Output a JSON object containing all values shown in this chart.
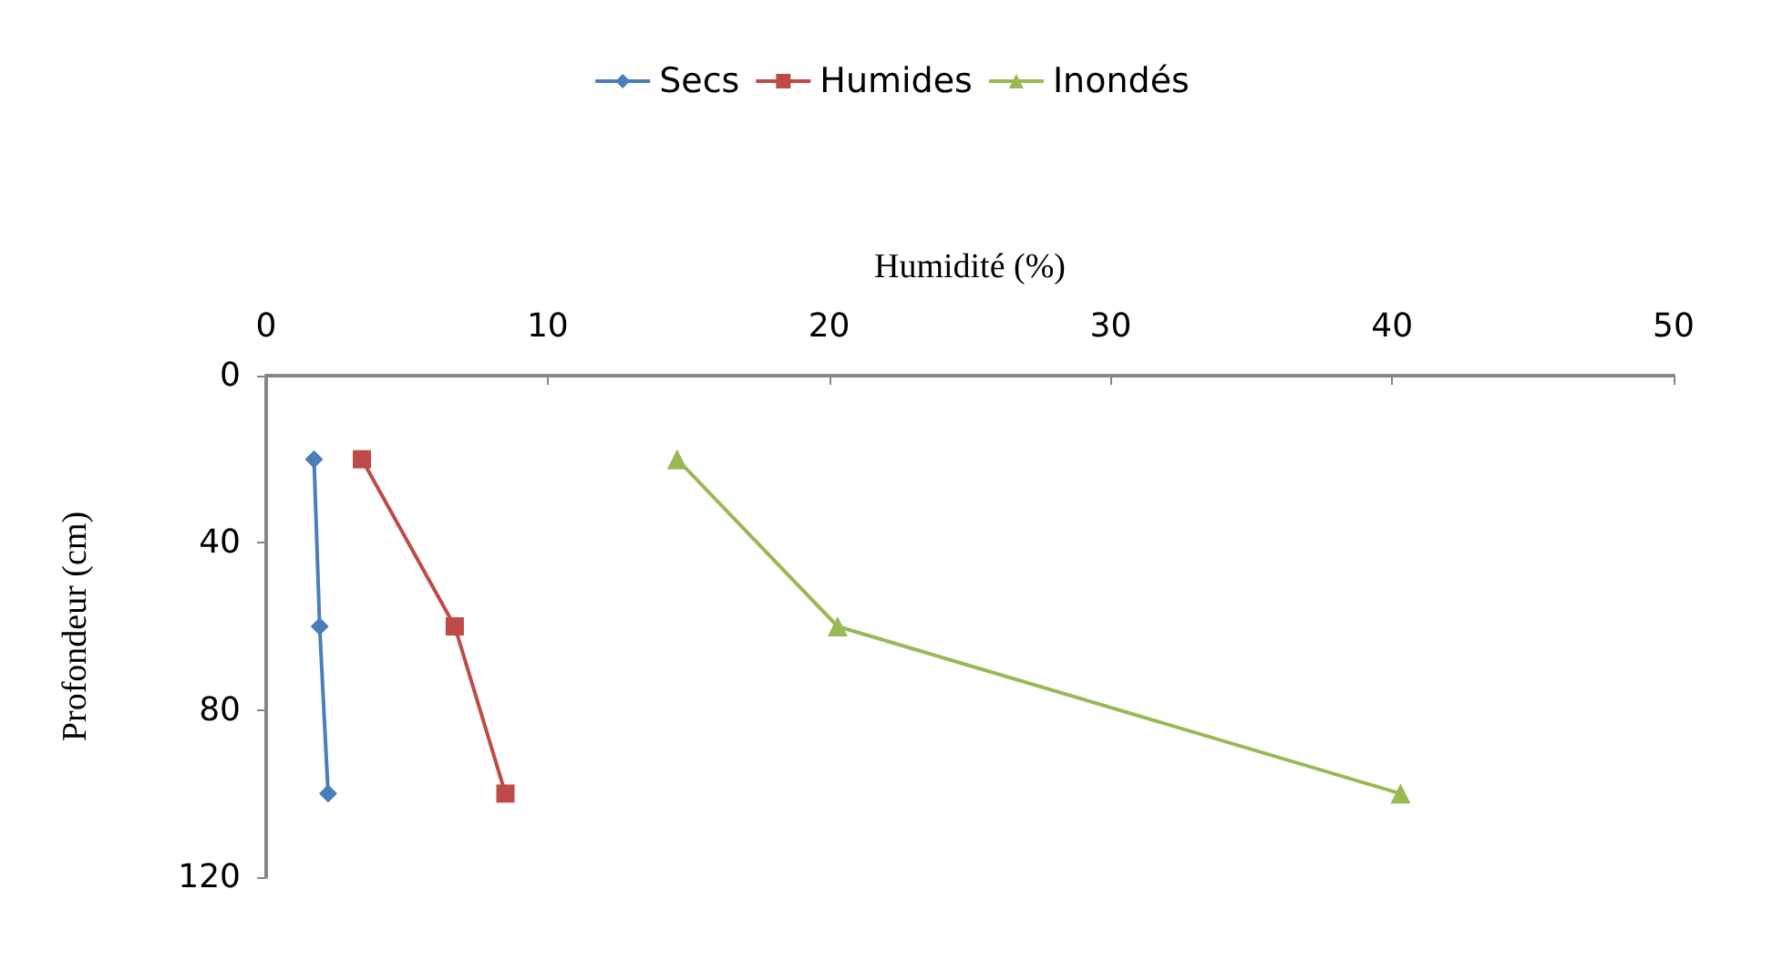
{
  "chart_data": {
    "type": "line",
    "xlabel": "Humidité (%)",
    "ylabel": "Profondeur (cm)",
    "xlim": [
      0,
      50
    ],
    "xticks": [
      0,
      10,
      20,
      30,
      40,
      50
    ],
    "ylim": [
      120,
      0
    ],
    "yticks": [
      0,
      40,
      80,
      120
    ],
    "legend": "top",
    "grid": false,
    "series": [
      {
        "name": "Secs",
        "color": "#4a7ebb",
        "marker": "diamond",
        "x": [
          1.7,
          1.9,
          2.2
        ],
        "values": [
          20,
          60,
          100
        ]
      },
      {
        "name": "Humides",
        "color": "#be4b48",
        "marker": "square",
        "x": [
          3.4,
          6.7,
          8.5
        ],
        "values": [
          20,
          60,
          100
        ]
      },
      {
        "name": "Inondés",
        "color": "#98b954",
        "marker": "triangle",
        "x": [
          14.6,
          20.3,
          40.3
        ],
        "values": [
          20,
          60,
          100
        ]
      }
    ]
  }
}
